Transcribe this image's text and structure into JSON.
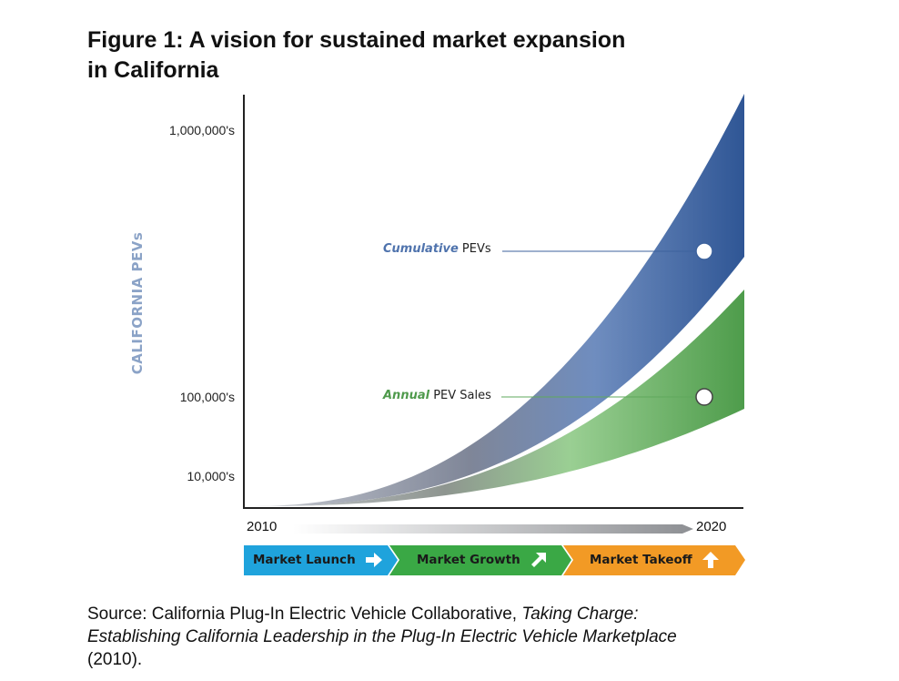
{
  "title_line1": "Figure 1: A vision for sustained market expansion",
  "title_line2": "in California",
  "source": {
    "prefix": "Source: California Plug-In Electric Vehicle Collaborative, ",
    "italic_line1": "Taking Charge:",
    "italic_line2": "Establishing California Leadership in the Plug-In Electric Vehicle Marketplace",
    "suffix": "(2010)."
  },
  "colors": {
    "cumulative": "#3d629d",
    "annual": "#5fa85c",
    "ylabel": "#8ba3c7",
    "launch": "#1fa3dc",
    "growth": "#3aa845",
    "takeoff": "#f29a25"
  },
  "phases": [
    {
      "label": "Market Launch",
      "icon": "arrow-right-icon"
    },
    {
      "label": "Market Growth",
      "icon": "arrow-up-right-icon"
    },
    {
      "label": "Market Takeoff",
      "icon": "arrow-up-icon"
    }
  ],
  "chart_data": {
    "type": "area",
    "title": "",
    "ylabel": "CALIFORNIA PEVs",
    "xlabel": "",
    "x_start_label": "2010",
    "x_end_label": "2020",
    "y_scale": "log",
    "y_ticks": [
      "1,000,000's",
      "100,000's",
      "10,000's"
    ],
    "grid": false,
    "series": [
      {
        "name_emph": "Cumulative",
        "name_rest": " PEVs",
        "color": "#3d629d",
        "end_value": "1,000,000's"
      },
      {
        "name_emph": "Annual",
        "name_rest": " PEV Sales",
        "color": "#5fa85c",
        "end_value": "100,000's"
      }
    ],
    "annotations": [
      {
        "series": 0,
        "text": "Cumulative PEVs"
      },
      {
        "series": 1,
        "text": "Annual PEV Sales"
      }
    ]
  }
}
